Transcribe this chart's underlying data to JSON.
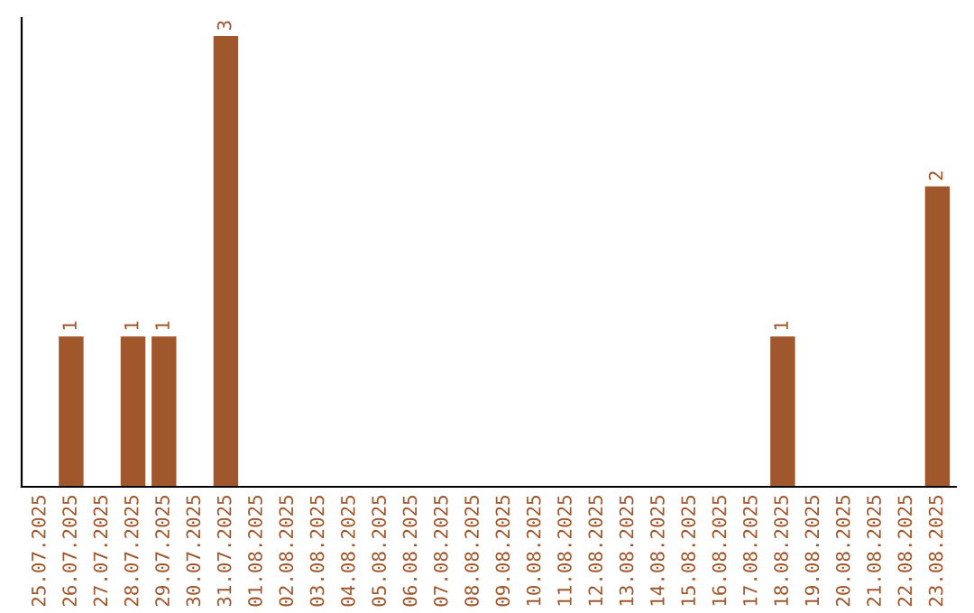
{
  "chart_data": {
    "type": "bar",
    "categories": [
      "25.07.2025",
      "26.07.2025",
      "27.07.2025",
      "28.07.2025",
      "29.07.2025",
      "30.07.2025",
      "31.07.2025",
      "01.08.2025",
      "02.08.2025",
      "03.08.2025",
      "04.08.2025",
      "05.08.2025",
      "06.08.2025",
      "07.08.2025",
      "08.08.2025",
      "09.08.2025",
      "10.08.2025",
      "11.08.2025",
      "12.08.2025",
      "13.08.2025",
      "14.08.2025",
      "15.08.2025",
      "16.08.2025",
      "17.08.2025",
      "18.08.2025",
      "19.08.2025",
      "20.08.2025",
      "21.08.2025",
      "22.08.2025",
      "23.08.2025"
    ],
    "values": [
      0,
      1,
      0,
      1,
      1,
      0,
      3,
      0,
      0,
      0,
      0,
      0,
      0,
      0,
      0,
      0,
      0,
      0,
      0,
      0,
      0,
      0,
      0,
      0,
      1,
      0,
      0,
      0,
      0,
      2
    ],
    "value_labels": [
      null,
      "1",
      null,
      "1",
      "1",
      null,
      "3",
      null,
      null,
      null,
      null,
      null,
      null,
      null,
      null,
      null,
      null,
      null,
      null,
      null,
      null,
      null,
      null,
      null,
      "1",
      null,
      null,
      null,
      null,
      "2"
    ],
    "color": "#a0572c",
    "grid": false,
    "legend": false
  }
}
